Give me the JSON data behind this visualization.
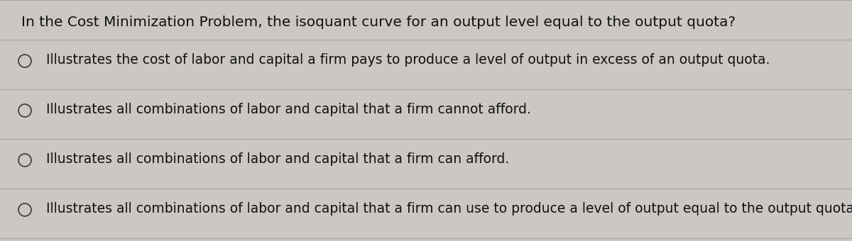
{
  "background_color": "#cbc7c3",
  "question": "In the Cost Minimization Problem, the isoquant curve for an output level equal to the output quota?",
  "options": [
    "Illustrates the cost of labor and capital a firm pays to produce a level of output in excess of an output quota.",
    "Illustrates all combinations of labor and capital that a firm cannot afford.",
    "Illustrates all combinations of labor and capital that a firm can afford.",
    "Illustrates all combinations of labor and capital that a firm can use to produce a level of output equal to the output quota."
  ],
  "question_fontsize": 14.5,
  "option_fontsize": 13.5,
  "text_color": "#111111",
  "line_color": "#aaa8a5",
  "circle_edgecolor": "#444444",
  "circle_linewidth": 1.3
}
